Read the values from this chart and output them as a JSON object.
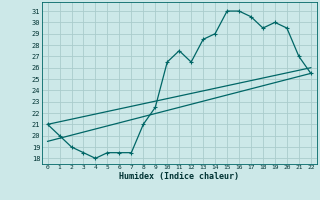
{
  "xlabel": "Humidex (Indice chaleur)",
  "background_color": "#cce8e8",
  "grid_color": "#aacccc",
  "line_color": "#006666",
  "ylim": [
    17.5,
    31.8
  ],
  "xlim": [
    -0.5,
    22.5
  ],
  "yticks": [
    18,
    19,
    20,
    21,
    22,
    23,
    24,
    25,
    26,
    27,
    28,
    29,
    30,
    31
  ],
  "xticks": [
    0,
    1,
    2,
    3,
    4,
    5,
    6,
    7,
    8,
    9,
    10,
    11,
    12,
    13,
    14,
    15,
    16,
    17,
    18,
    19,
    20,
    21,
    22
  ],
  "series1_x": [
    0,
    1,
    2,
    3,
    4,
    5,
    6,
    7,
    8,
    9,
    10,
    11,
    12,
    13,
    14,
    15,
    16,
    17,
    18,
    19,
    20,
    21,
    22
  ],
  "series1_y": [
    21.0,
    20.0,
    19.0,
    18.5,
    18.0,
    18.5,
    18.5,
    18.5,
    21.0,
    22.5,
    26.5,
    27.5,
    26.5,
    28.5,
    29.0,
    31.0,
    31.0,
    30.5,
    29.5,
    30.0,
    29.5,
    27.0,
    25.5
  ],
  "series2_x": [
    0,
    22
  ],
  "series2_y": [
    19.5,
    25.5
  ],
  "series3_x": [
    0,
    22
  ],
  "series3_y": [
    21.0,
    26.0
  ]
}
